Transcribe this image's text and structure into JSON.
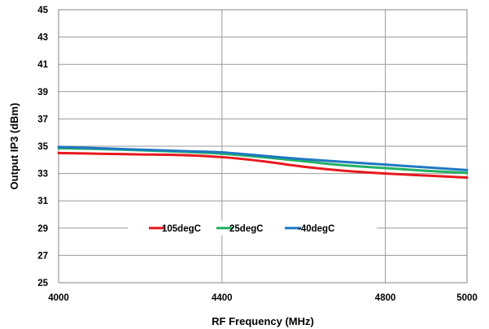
{
  "chart_data": {
    "type": "line",
    "xlabel": "RF Frequency (MHz)",
    "ylabel": "Output IP3 (dBm)",
    "xlim": [
      4000,
      5000
    ],
    "ylim": [
      25,
      45
    ],
    "xticks": [
      "4000",
      "4400",
      "4800",
      "5000"
    ],
    "yticks": [
      "25",
      "27",
      "29",
      "31",
      "33",
      "35",
      "37",
      "39",
      "41",
      "43",
      "45"
    ],
    "grid": true,
    "legend_position": "inside-lower-center",
    "series": [
      {
        "name": "105degC",
        "color": "#e8191e",
        "x": [
          4000,
          4100,
          4200,
          4300,
          4400,
          4500,
          4600,
          4700,
          4800,
          4900,
          5000
        ],
        "y": [
          34.5,
          34.45,
          34.4,
          34.35,
          34.2,
          33.9,
          33.5,
          33.2,
          33.0,
          32.85,
          32.7
        ]
      },
      {
        "name": "25degC",
        "color": "#21b063",
        "x": [
          4000,
          4100,
          4200,
          4300,
          4400,
          4500,
          4600,
          4700,
          4800,
          4900,
          5000
        ],
        "y": [
          34.85,
          34.8,
          34.7,
          34.6,
          34.45,
          34.2,
          33.9,
          33.6,
          33.4,
          33.2,
          33.05
        ]
      },
      {
        "name": "-40degC",
        "color": "#1f78c1",
        "x": [
          4000,
          4100,
          4200,
          4300,
          4400,
          4500,
          4600,
          4700,
          4800,
          4900,
          5000
        ],
        "y": [
          34.95,
          34.85,
          34.75,
          34.65,
          34.55,
          34.3,
          34.05,
          33.85,
          33.65,
          33.45,
          33.25
        ]
      }
    ]
  }
}
